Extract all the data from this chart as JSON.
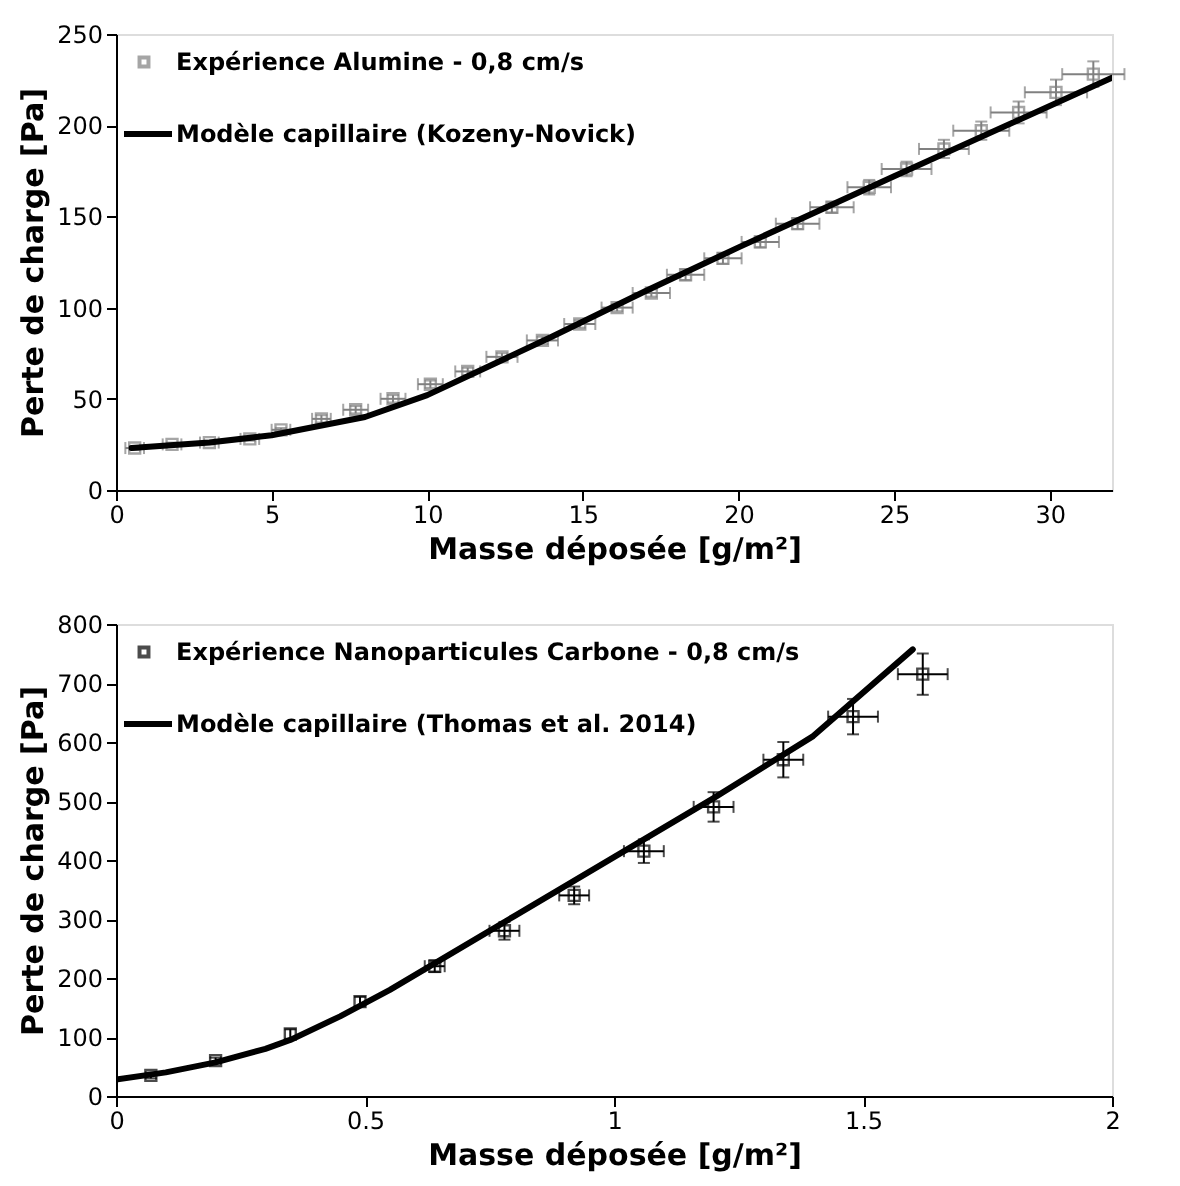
{
  "chart_data": [
    {
      "type": "scatter",
      "xlabel": "Masse déposée [g/m²]",
      "ylabel": "Perte de charge [Pa]",
      "xlim": [
        0,
        32
      ],
      "xticks": [
        0,
        5,
        10,
        15,
        20,
        25,
        30
      ],
      "ylim": [
        0,
        250
      ],
      "yticks": [
        0,
        50,
        100,
        150,
        200,
        250
      ],
      "legend": "top left",
      "grid": false,
      "series": [
        {
          "name": "Expérience Alumine - 0,8 cm/s",
          "type": "scatter",
          "marker": "square",
          "color": "#808080",
          "x": [
            0.6,
            1.8,
            3.0,
            4.3,
            5.3,
            6.6,
            7.7,
            8.9,
            10.1,
            11.3,
            12.4,
            13.7,
            14.9,
            16.1,
            17.2,
            18.3,
            19.5,
            20.7,
            21.9,
            23.0,
            24.2,
            25.4,
            26.6,
            27.8,
            29.0,
            30.2,
            31.4
          ],
          "values": [
            23,
            25,
            26,
            28,
            33,
            39,
            44,
            50,
            58,
            65,
            73,
            82,
            91,
            100,
            108,
            118,
            127,
            136,
            146,
            155,
            166,
            176,
            187,
            197,
            207,
            218,
            228
          ],
          "errors": [
            1,
            1,
            1,
            1,
            1,
            2,
            2,
            2,
            2,
            2,
            2,
            2,
            2,
            2,
            2,
            3,
            3,
            3,
            3,
            3,
            4,
            4,
            5,
            5,
            6,
            7,
            7
          ],
          "xerrors": [
            0.3,
            0.3,
            0.3,
            0.3,
            0.3,
            0.3,
            0.4,
            0.4,
            0.4,
            0.4,
            0.5,
            0.5,
            0.5,
            0.5,
            0.6,
            0.6,
            0.6,
            0.6,
            0.7,
            0.7,
            0.7,
            0.8,
            0.8,
            0.9,
            0.9,
            1.0,
            1.0
          ]
        },
        {
          "name": "Modèle capillaire (Kozeny-Novick)",
          "type": "line",
          "color": "#000000",
          "line_style": "solid",
          "x": [
            0.5,
            3,
            5,
            8,
            10,
            12,
            14,
            17,
            20,
            25,
            32
          ],
          "values": [
            23,
            26,
            30,
            40,
            52,
            68,
            84,
            109,
            133,
            172,
            226
          ]
        }
      ]
    },
    {
      "type": "scatter",
      "xlabel": "Masse déposée [g/m²]",
      "ylabel": "Perte de charge [Pa]",
      "xlim": [
        0,
        2
      ],
      "xticks": [
        0,
        0.5,
        1,
        1.5,
        2
      ],
      "ylim": [
        0,
        800
      ],
      "yticks": [
        0,
        100,
        200,
        300,
        400,
        500,
        600,
        700,
        800
      ],
      "legend": "top left",
      "grid": false,
      "series": [
        {
          "name": "Expérience Nanoparticules Carbone - 0,8 cm/s",
          "type": "scatter",
          "marker": "square",
          "color": "#000000",
          "x": [
            0.07,
            0.2,
            0.35,
            0.49,
            0.64,
            0.78,
            0.92,
            1.06,
            1.2,
            1.34,
            1.48,
            1.62
          ],
          "values": [
            35,
            60,
            105,
            160,
            220,
            280,
            340,
            415,
            490,
            570,
            643,
            715
          ],
          "errors": [
            5,
            5,
            8,
            8,
            10,
            15,
            15,
            20,
            25,
            30,
            30,
            35
          ],
          "xerrors": [
            null,
            null,
            null,
            null,
            0.02,
            0.03,
            0.03,
            0.04,
            0.04,
            0.04,
            0.05,
            0.05
          ]
        },
        {
          "name": "Modèle capillaire (Thomas et al. 2014)",
          "type": "line",
          "color": "#000000",
          "line_style": "solid",
          "x": [
            0,
            0.1,
            0.2,
            0.3,
            0.35,
            0.45,
            0.55,
            0.65,
            0.8,
            1.0,
            1.2,
            1.4,
            1.6
          ],
          "values": [
            28,
            40,
            57,
            80,
            95,
            135,
            180,
            230,
            305,
            405,
            505,
            610,
            757
          ]
        }
      ]
    }
  ]
}
